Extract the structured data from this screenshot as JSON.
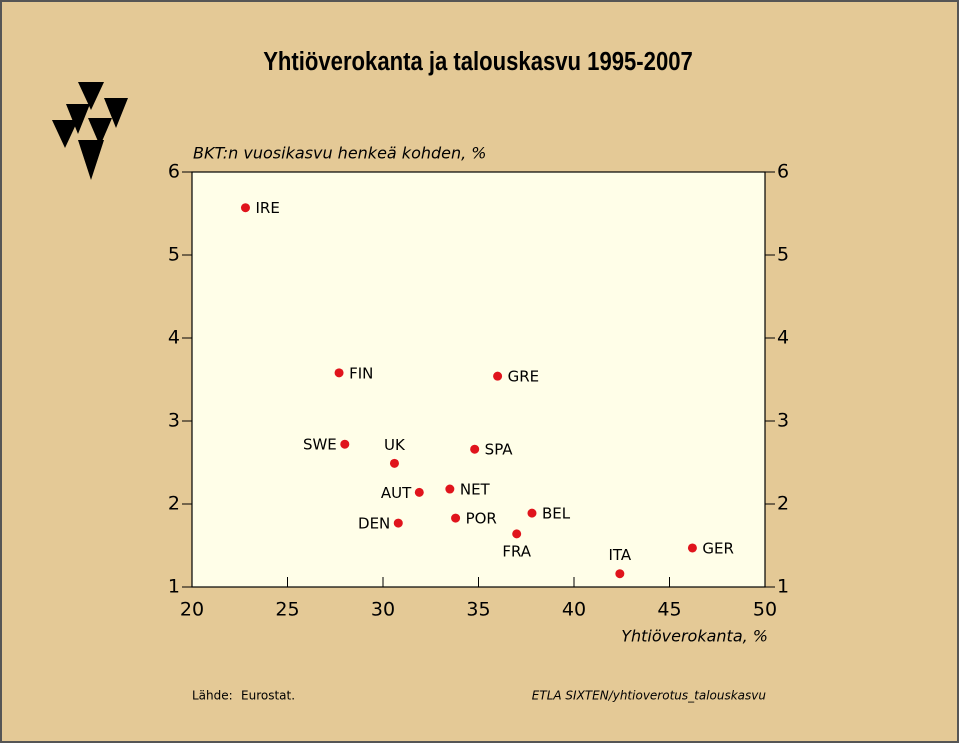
{
  "chart_data": {
    "type": "scatter",
    "title": "Yhtiöverokanta ja talouskasvu 1995-2007",
    "y_label": "BKT:n vuosikasvu henkeä kohden, %",
    "x_label": "Yhtiöverokanta, %",
    "source_label": "Lähde:",
    "source": "Eurostat.",
    "credit": "ETLA  SIXTEN/yhtioverotus_talouskasvu",
    "labels": [
      "IRE",
      "FIN",
      "GRE",
      "SWE",
      "UK",
      "SPA",
      "AUT",
      "NET",
      "DEN",
      "POR",
      "BEL",
      "FRA",
      "ITA",
      "GER"
    ],
    "x": [
      22.8,
      27.7,
      36.0,
      28.0,
      30.6,
      34.8,
      31.9,
      33.5,
      30.8,
      33.8,
      37.8,
      37.0,
      42.4,
      46.2
    ],
    "y": [
      5.57,
      3.58,
      3.54,
      2.72,
      2.49,
      2.66,
      2.14,
      2.18,
      1.77,
      1.83,
      1.89,
      1.64,
      1.16,
      1.47
    ],
    "color": "#e0141c",
    "xlim": [
      20,
      50
    ],
    "xticks": [
      20,
      25,
      30,
      35,
      40,
      45,
      50
    ],
    "ylim": [
      1,
      6
    ],
    "yticks": [
      1,
      2,
      3,
      4,
      5,
      6
    ]
  }
}
